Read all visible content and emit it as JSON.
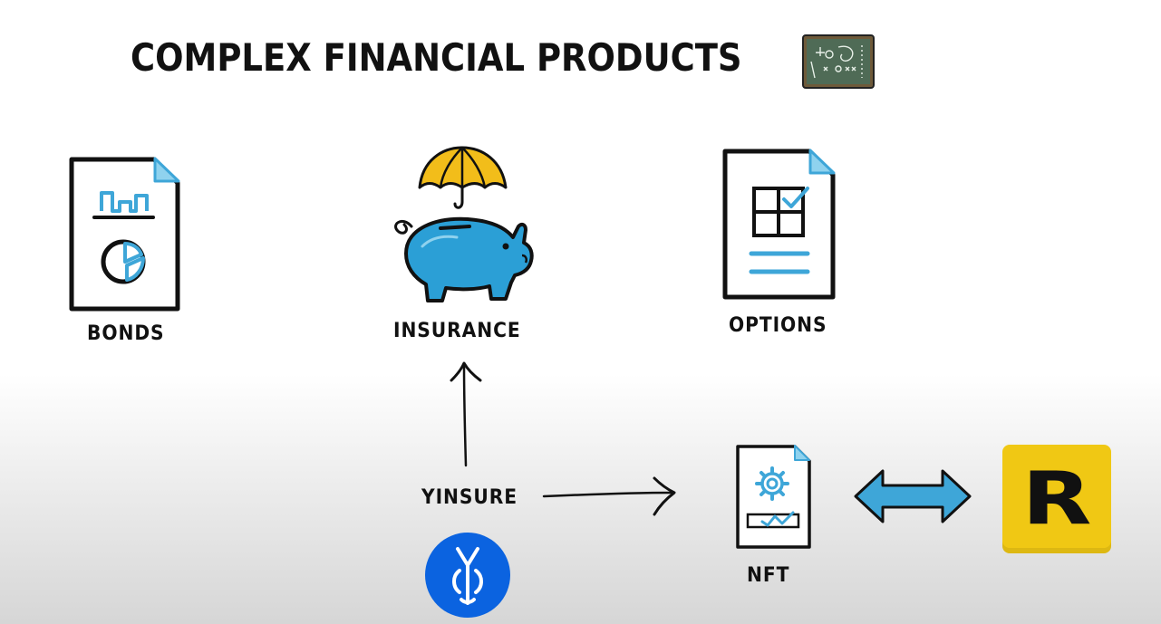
{
  "title": "COMPLEX FINANCIAL PRODUCTS",
  "items": {
    "bonds": "BONDS",
    "insurance": "INSURANCE",
    "options": "OPTIONS",
    "yinsure": "YINSURE",
    "nft": "NFT"
  },
  "logo_letter": "R",
  "colors": {
    "accent_blue": "#3ea6d8",
    "piggy_blue": "#2b9fd6",
    "umbrella_yellow": "#f2bd1a",
    "chalkboard_green": "#4f6b56",
    "yearn_blue": "#0b63e0",
    "logo_yellow": "#f0c814"
  }
}
